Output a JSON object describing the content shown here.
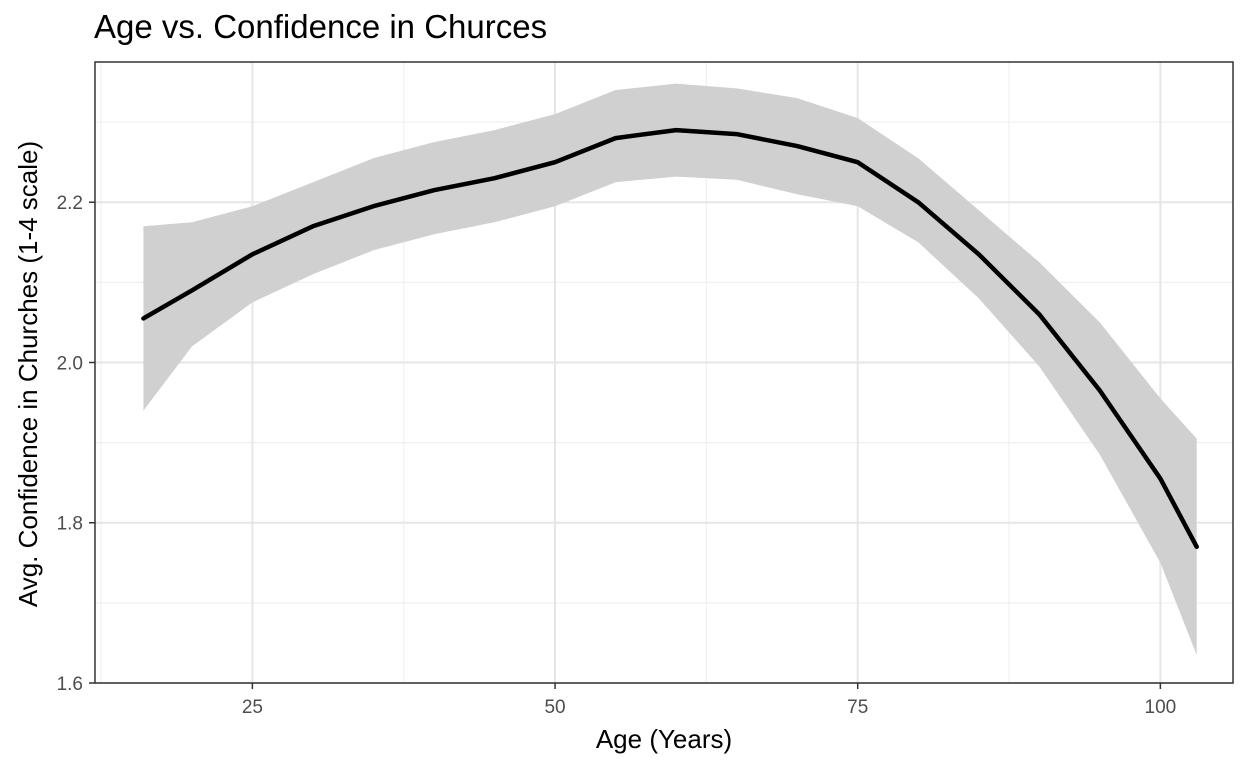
{
  "chart_data": {
    "type": "line",
    "title": "Age vs. Confidence in Churces",
    "xlabel": "Age (Years)",
    "ylabel": "Avg. Confidence in Churches (1-4 scale)",
    "xlim": [
      12,
      106
    ],
    "ylim": [
      1.6,
      2.375
    ],
    "x_ticks": [
      25,
      50,
      75,
      100
    ],
    "y_ticks": [
      1.6,
      1.8,
      2.0,
      2.2
    ],
    "y_tick_labels": [
      "1.6",
      "1.8",
      "2.0",
      "2.2"
    ],
    "grid": true,
    "series": [
      {
        "points": [
          {
            "x": 16,
            "y": 2.055,
            "lo": 1.94,
            "hi": 2.17
          },
          {
            "x": 20,
            "y": 2.09,
            "lo": 2.02,
            "hi": 2.175
          },
          {
            "x": 25,
            "y": 2.135,
            "lo": 2.075,
            "hi": 2.195
          },
          {
            "x": 30,
            "y": 2.17,
            "lo": 2.11,
            "hi": 2.225
          },
          {
            "x": 35,
            "y": 2.195,
            "lo": 2.14,
            "hi": 2.255
          },
          {
            "x": 40,
            "y": 2.215,
            "lo": 2.16,
            "hi": 2.275
          },
          {
            "x": 45,
            "y": 2.23,
            "lo": 2.175,
            "hi": 2.29
          },
          {
            "x": 50,
            "y": 2.25,
            "lo": 2.195,
            "hi": 2.31
          },
          {
            "x": 55,
            "y": 2.28,
            "lo": 2.225,
            "hi": 2.34
          },
          {
            "x": 60,
            "y": 2.29,
            "lo": 2.232,
            "hi": 2.348
          },
          {
            "x": 65,
            "y": 2.285,
            "lo": 2.228,
            "hi": 2.342
          },
          {
            "x": 70,
            "y": 2.27,
            "lo": 2.21,
            "hi": 2.33
          },
          {
            "x": 75,
            "y": 2.25,
            "lo": 2.195,
            "hi": 2.305
          },
          {
            "x": 80,
            "y": 2.2,
            "lo": 2.15,
            "hi": 2.255
          },
          {
            "x": 85,
            "y": 2.135,
            "lo": 2.08,
            "hi": 2.19
          },
          {
            "x": 90,
            "y": 2.06,
            "lo": 1.995,
            "hi": 2.125
          },
          {
            "x": 95,
            "y": 1.965,
            "lo": 1.885,
            "hi": 2.05
          },
          {
            "x": 100,
            "y": 1.855,
            "lo": 1.75,
            "hi": 1.955
          },
          {
            "x": 103,
            "y": 1.77,
            "lo": 1.635,
            "hi": 1.905
          }
        ]
      }
    ],
    "colors": {
      "line": "#000000",
      "ribbon": "#d0d0d0",
      "grid": "#e6e6e6",
      "grid_minor": "#f0f0f0",
      "panel_border": "#333333"
    }
  }
}
